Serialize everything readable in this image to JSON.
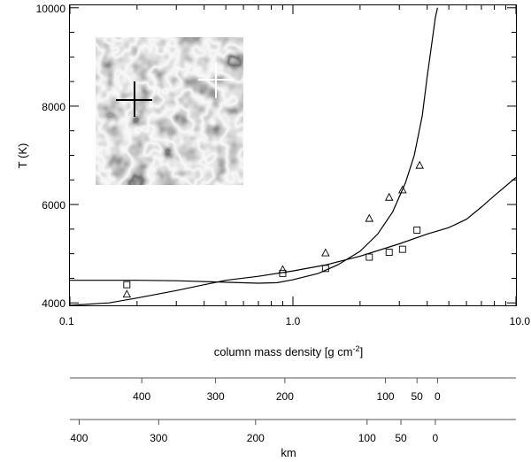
{
  "chart_data": {
    "type": "line",
    "xlabel": "column mass density [g cm",
    "xlabel_exp": "-2",
    "xlabel_close": "]",
    "ylabel": "T (K)",
    "xscale": "log",
    "xlim": [
      0.1,
      10.0
    ],
    "ylim": [
      3950,
      10050
    ],
    "x_ticks": [
      {
        "value": 0.1,
        "label": "0.1"
      },
      {
        "value": 1.0,
        "label": "1.0"
      },
      {
        "value": 10.0,
        "label": "10.0"
      }
    ],
    "y_ticks": [
      {
        "value": 4000,
        "label": "4000"
      },
      {
        "value": 6000,
        "label": "6000"
      },
      {
        "value": 8000,
        "label": "8000"
      },
      {
        "value": 10000,
        "label": "10000"
      }
    ],
    "series": [
      {
        "marker": "none",
        "x": [
          0.1,
          0.2,
          0.3,
          0.5,
          0.7,
          0.85,
          1.0,
          1.3,
          1.6,
          2.0,
          2.4,
          2.8,
          3.2,
          3.5,
          3.8,
          4.0,
          4.2,
          4.35,
          4.45
        ],
        "y": [
          4460,
          4460,
          4450,
          4420,
          4400,
          4410,
          4470,
          4600,
          4780,
          5050,
          5400,
          5850,
          6450,
          7000,
          7800,
          8600,
          9300,
          9800,
          10000
        ]
      },
      {
        "marker": "none",
        "x": [
          0.1,
          0.15,
          0.2,
          0.3,
          0.4,
          0.5,
          0.7,
          1.0,
          1.4,
          2.0,
          3.0,
          4.0,
          5.0,
          6.0,
          7.0,
          8.0,
          10.0
        ],
        "y": [
          3950,
          4000,
          4100,
          4250,
          4370,
          4460,
          4540,
          4650,
          4770,
          4950,
          5200,
          5400,
          5530,
          5700,
          5950,
          6180,
          6550
        ]
      },
      {
        "marker": "triangle",
        "x": [
          0.18,
          0.9,
          1.4,
          2.2,
          2.7,
          3.1,
          3.7
        ],
        "y": [
          4180,
          4680,
          5020,
          5720,
          6150,
          6300,
          6800
        ]
      },
      {
        "marker": "square",
        "x": [
          0.18,
          0.9,
          1.4,
          2.2,
          2.7,
          3.1,
          3.6
        ],
        "y": [
          4370,
          4600,
          4700,
          4930,
          5030,
          5090,
          5480
        ]
      }
    ],
    "secondary_axes": [
      {
        "ticks": [
          {
            "label": "400",
            "x": 0.21
          },
          {
            "label": "300",
            "x": 0.45
          },
          {
            "label": "200",
            "x": 0.92
          },
          {
            "label": "100",
            "x": 2.6
          },
          {
            "label": "50",
            "x": 3.6
          },
          {
            "label": "0",
            "x": 4.45
          }
        ]
      },
      {
        "label": "km",
        "ticks": [
          {
            "label": "400",
            "x": 0.11
          },
          {
            "label": "300",
            "x": 0.25
          },
          {
            "label": "200",
            "x": 0.68
          },
          {
            "label": "100",
            "x": 2.15
          },
          {
            "label": "50",
            "x": 3.05
          },
          {
            "label": "0",
            "x": 4.35
          }
        ]
      }
    ],
    "inset": {
      "kind": "granulation-image",
      "crosshair_colors": [
        "#000000",
        "#ffffff"
      ]
    }
  }
}
